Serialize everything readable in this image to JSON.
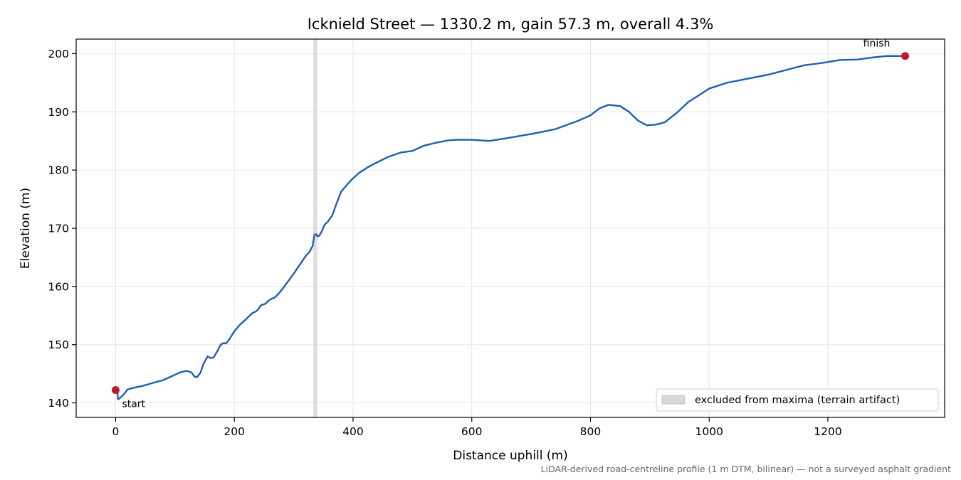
{
  "chart_data": {
    "type": "line",
    "title": "Icknield Street — 1330.2 m, gain 57.3 m, overall 4.3%",
    "xlabel": "Distance uphill (m)",
    "ylabel": "Elevation (m)",
    "xlim": [
      -66.5,
      1396.7
    ],
    "ylim": [
      137.5,
      202.5
    ],
    "xticks": [
      0,
      200,
      400,
      600,
      800,
      1000,
      1200
    ],
    "yticks": [
      140,
      150,
      160,
      170,
      180,
      190,
      200
    ],
    "grid": true,
    "line_color": "#1f5fb0",
    "marker_color": "#c0192b",
    "band_color": "#d9d9d9",
    "series": [
      {
        "x": [
          0,
          3,
          4,
          8,
          14,
          20,
          27,
          35,
          45,
          55,
          65,
          80,
          95,
          110,
          120,
          128,
          133,
          137,
          143,
          148,
          155,
          160,
          165,
          172,
          177,
          182,
          186,
          192,
          200,
          210,
          220,
          230,
          238,
          245,
          252,
          258,
          263,
          268,
          275,
          282,
          290,
          300,
          310,
          320,
          327,
          332,
          335,
          338,
          340,
          343,
          347,
          352,
          358,
          365,
          372,
          380,
          385,
          390,
          398,
          410,
          425,
          440,
          460,
          480,
          500,
          520,
          540,
          560,
          575,
          600,
          630,
          660,
          700,
          740,
          780,
          800,
          815,
          830,
          850,
          865,
          880,
          895,
          910,
          925,
          945,
          965,
          985,
          1000,
          1030,
          1060,
          1100,
          1130,
          1160,
          1190,
          1220,
          1250,
          1280,
          1300,
          1330.2
        ],
        "y": [
          142.2,
          142.0,
          140.6,
          140.9,
          141.5,
          142.3,
          142.5,
          142.7,
          142.9,
          143.2,
          143.5,
          143.9,
          144.6,
          145.3,
          145.5,
          145.2,
          144.5,
          144.4,
          145.2,
          146.7,
          148.0,
          147.7,
          147.8,
          149.0,
          150.0,
          150.3,
          150.2,
          151.0,
          152.3,
          153.5,
          154.4,
          155.4,
          155.8,
          156.8,
          157.0,
          157.6,
          157.9,
          158.1,
          158.8,
          159.7,
          160.8,
          162.2,
          163.7,
          165.2,
          166.0,
          167.0,
          168.9,
          169.0,
          168.6,
          168.7,
          169.4,
          170.6,
          171.2,
          172.2,
          174.2,
          176.3,
          176.9,
          177.5,
          178.4,
          179.5,
          180.5,
          181.3,
          182.3,
          183.0,
          183.3,
          184.2,
          184.7,
          185.1,
          185.2,
          185.2,
          185.0,
          185.5,
          186.2,
          187.0,
          188.5,
          189.4,
          190.6,
          191.2,
          191.0,
          190.0,
          188.5,
          187.7,
          187.8,
          188.2,
          189.8,
          191.7,
          193.0,
          194.0,
          195.0,
          195.6,
          196.4,
          197.2,
          198.0,
          198.4,
          198.9,
          199.0,
          199.4,
          199.6,
          199.6
        ]
      }
    ],
    "excluded_band": [
      333,
      340
    ],
    "annotations": [
      {
        "text": "start",
        "x": 0,
        "y": 142.2
      },
      {
        "text": "finish",
        "x": 1330.2,
        "y": 199.6
      }
    ],
    "legend": {
      "placement": "lower-right",
      "label": "excluded from maxima (terrain artifact)"
    },
    "footnote": "LiDAR-derived road-centreline profile (1 m DTM, bilinear) — not a surveyed asphalt gradient"
  }
}
